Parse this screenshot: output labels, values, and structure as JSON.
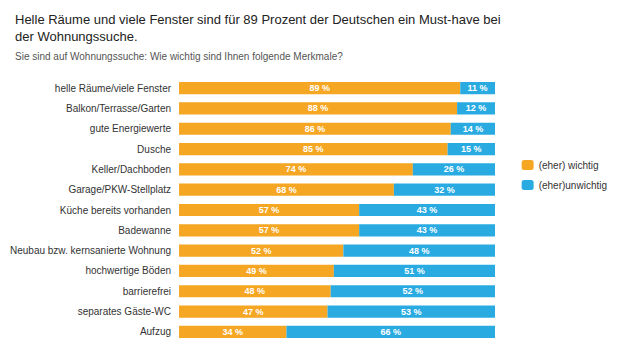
{
  "chart_data": {
    "type": "bar",
    "title": "Helle Räume und viele Fenster sind für 89 Prozent der Deutschen ein Must-have bei\nder Wohnungssuche.",
    "subtitle": "Sie sind auf Wohnungssuche: Wie wichtig sind Ihnen folgende Merkmale?",
    "orientation": "horizontal",
    "stacked": true,
    "data_labels": true,
    "grid": false,
    "legend": "right",
    "tick_labels": "y",
    "xlim": [
      0,
      100
    ],
    "categories": [
      "helle Räume/viele Fenster",
      "Balkon/Terrasse/Garten",
      "gute Energiewerte",
      "Dusche",
      "Keller/Dachboden",
      "Garage/PKW-Stellplatz",
      "Küche bereits vorhanden",
      "Badewanne",
      "Neubau bzw. kernsanierte Wohnung",
      "hochwertige Böden",
      "barrierefrei",
      "separates Gäste-WC",
      "Aufzug"
    ],
    "series": [
      {
        "name": "(eher) wichtig",
        "color": "#F5A623",
        "values": [
          89,
          88,
          86,
          85,
          74,
          68,
          57,
          57,
          52,
          49,
          48,
          47,
          34
        ],
        "value_labels": [
          "89 %",
          "88 %",
          "86 %",
          "85 %",
          "74 %",
          "68 %",
          "57 %",
          "57 %",
          "52 %",
          "49 %",
          "48 %",
          "47 %",
          "34 %"
        ]
      },
      {
        "name": "(eher)unwichtig",
        "color": "#29ABE2",
        "values": [
          11,
          12,
          14,
          15,
          26,
          32,
          43,
          43,
          48,
          51,
          52,
          53,
          66
        ],
        "value_labels": [
          "11 %",
          "12 %",
          "14 %",
          "15 %",
          "26 %",
          "32 %",
          "43 %",
          "43 %",
          "48 %",
          "51 %",
          "52 %",
          "53 %",
          "66 %"
        ]
      }
    ]
  }
}
